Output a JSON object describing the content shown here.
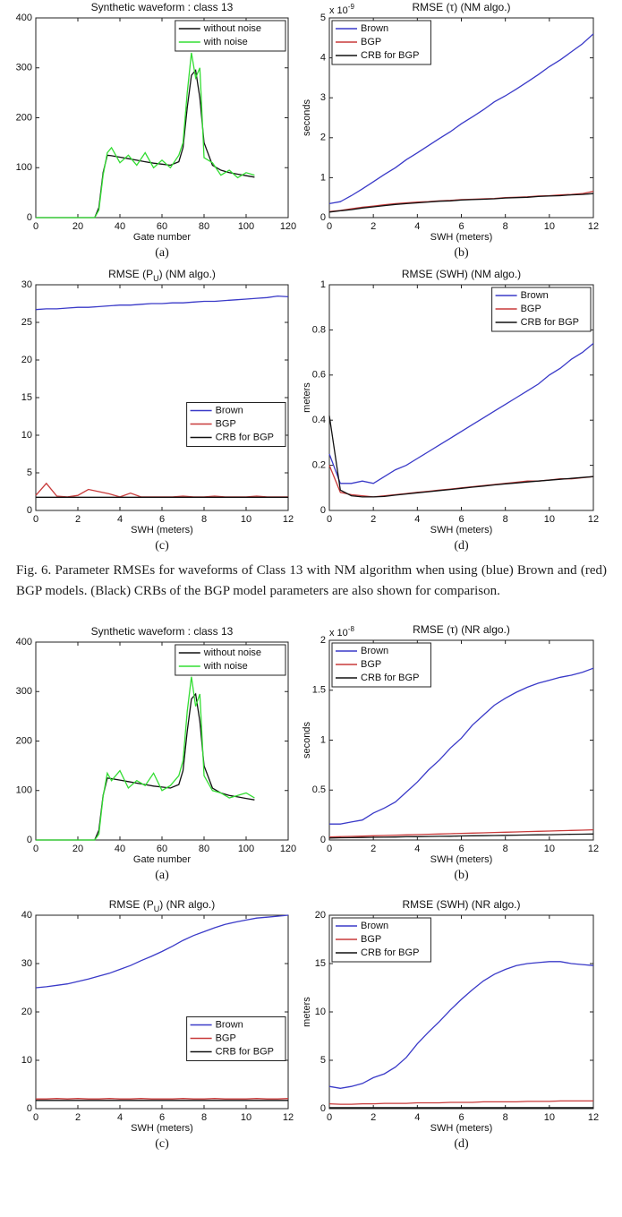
{
  "caption": "Fig. 6.   Parameter RMSEs for waveforms of Class 13 with NM algorithm when using (blue) Brown and (red) BGP models. (Black) CRBs of the BGP model parameters are also shown for comparison.",
  "chart_data": [
    {
      "type": "line",
      "title": "Synthetic waveform : class 13",
      "xlabel": "Gate number",
      "label": "(a)",
      "x": [
        0,
        4,
        8,
        12,
        16,
        20,
        24,
        28,
        30,
        32,
        34,
        36,
        40,
        44,
        48,
        52,
        56,
        60,
        64,
        68,
        70,
        72,
        74,
        76,
        78,
        80,
        84,
        88,
        92,
        96,
        100,
        104
      ],
      "series": [
        {
          "name": "without noise",
          "color": "#111111",
          "values": [
            0,
            0,
            0,
            0,
            0,
            0,
            0,
            0,
            20,
            90,
            125,
            124,
            121,
            118,
            115,
            112,
            109,
            107,
            105,
            112,
            140,
            220,
            285,
            295,
            240,
            150,
            105,
            95,
            90,
            87,
            84,
            81
          ]
        },
        {
          "name": "with noise",
          "color": "#33dd33",
          "values": [
            0,
            0,
            0,
            0,
            0,
            0,
            0,
            0,
            15,
            85,
            130,
            140,
            110,
            125,
            105,
            130,
            100,
            115,
            100,
            125,
            150,
            250,
            330,
            280,
            300,
            120,
            110,
            85,
            95,
            80,
            90,
            85
          ]
        }
      ],
      "xlim": [
        0,
        120
      ],
      "xticks": [
        0,
        20,
        40,
        60,
        80,
        100,
        120
      ],
      "ylim": [
        0,
        400
      ],
      "yticks": [
        0,
        100,
        200,
        300,
        400
      ],
      "legend": "upper right"
    },
    {
      "type": "line",
      "title": "RMSE (τ) (NM algo.)",
      "xlabel": "SWH (meters)",
      "ylabel": "seconds",
      "label": "(b)",
      "ymult": "x 10",
      "ymult_exp": "-9",
      "x": [
        0,
        0.5,
        1,
        1.5,
        2,
        2.5,
        3,
        3.5,
        4,
        4.5,
        5,
        5.5,
        6,
        6.5,
        7,
        7.5,
        8,
        8.5,
        9,
        9.5,
        10,
        10.5,
        11,
        11.5,
        12
      ],
      "series": [
        {
          "name": "Brown",
          "color": "#3a3ac8",
          "values": [
            0.35,
            0.4,
            0.55,
            0.72,
            0.9,
            1.08,
            1.25,
            1.45,
            1.62,
            1.8,
            1.98,
            2.15,
            2.35,
            2.52,
            2.7,
            2.9,
            3.05,
            3.22,
            3.4,
            3.58,
            3.78,
            3.95,
            4.15,
            4.35,
            4.6
          ]
        },
        {
          "name": "BGP",
          "color": "#c83a3a",
          "values": [
            0.15,
            0.18,
            0.22,
            0.26,
            0.29,
            0.32,
            0.35,
            0.37,
            0.39,
            0.4,
            0.42,
            0.43,
            0.45,
            0.46,
            0.47,
            0.48,
            0.5,
            0.51,
            0.52,
            0.54,
            0.55,
            0.57,
            0.58,
            0.6,
            0.66
          ]
        },
        {
          "name": "CRB for BGP",
          "color": "#111111",
          "values": [
            0.14,
            0.17,
            0.2,
            0.24,
            0.27,
            0.3,
            0.33,
            0.35,
            0.37,
            0.39,
            0.41,
            0.42,
            0.44,
            0.45,
            0.46,
            0.47,
            0.49,
            0.5,
            0.51,
            0.53,
            0.54,
            0.55,
            0.57,
            0.58,
            0.6
          ]
        }
      ],
      "xlim": [
        0,
        12
      ],
      "xticks": [
        0,
        2,
        4,
        6,
        8,
        10,
        12
      ],
      "ylim": [
        0,
        5
      ],
      "yticks": [
        0,
        1,
        2,
        3,
        4,
        5
      ],
      "legend": "upper left"
    },
    {
      "type": "line",
      "title": "RMSE (P",
      "title_sub": "U",
      "title_end": ") (NM algo.)",
      "xlabel": "SWH (meters)",
      "label": "(c)",
      "x": [
        0,
        0.5,
        1,
        1.5,
        2,
        2.5,
        3,
        3.5,
        4,
        4.5,
        5,
        5.5,
        6,
        6.5,
        7,
        7.5,
        8,
        8.5,
        9,
        9.5,
        10,
        10.5,
        11,
        11.5,
        12
      ],
      "series": [
        {
          "name": "Brown",
          "color": "#3a3ac8",
          "values": [
            26.7,
            26.8,
            26.8,
            26.9,
            27.0,
            27.0,
            27.1,
            27.2,
            27.3,
            27.3,
            27.4,
            27.5,
            27.5,
            27.6,
            27.6,
            27.7,
            27.8,
            27.8,
            27.9,
            28.0,
            28.1,
            28.2,
            28.3,
            28.5,
            28.4
          ]
        },
        {
          "name": "BGP",
          "color": "#c83a3a",
          "values": [
            2.0,
            3.6,
            1.9,
            1.8,
            2.0,
            2.8,
            2.5,
            2.2,
            1.8,
            2.3,
            1.8,
            1.8,
            1.8,
            1.8,
            1.9,
            1.8,
            1.8,
            1.9,
            1.8,
            1.8,
            1.8,
            1.9,
            1.8,
            1.8,
            1.8
          ]
        },
        {
          "name": "CRB for BGP",
          "color": "#111111",
          "values": [
            1.75,
            1.75,
            1.75,
            1.75,
            1.75,
            1.75,
            1.75,
            1.75,
            1.75,
            1.75,
            1.75,
            1.75,
            1.75,
            1.75,
            1.75,
            1.75,
            1.75,
            1.75,
            1.75,
            1.75,
            1.75,
            1.75,
            1.75,
            1.75,
            1.75
          ]
        }
      ],
      "xlim": [
        0,
        12
      ],
      "xticks": [
        0,
        2,
        4,
        6,
        8,
        10,
        12
      ],
      "ylim": [
        0,
        30
      ],
      "yticks": [
        0,
        5,
        10,
        15,
        20,
        25,
        30
      ],
      "legend": "center right"
    },
    {
      "type": "line",
      "title": "RMSE (SWH) (NM algo.)",
      "xlabel": "SWH (meters)",
      "ylabel": "meters",
      "label": "(d)",
      "x": [
        0,
        0.5,
        1,
        1.5,
        2,
        2.5,
        3,
        3.5,
        4,
        4.5,
        5,
        5.5,
        6,
        6.5,
        7,
        7.5,
        8,
        8.5,
        9,
        9.5,
        10,
        10.5,
        11,
        11.5,
        12
      ],
      "series": [
        {
          "name": "Brown",
          "color": "#3a3ac8",
          "values": [
            0.25,
            0.12,
            0.12,
            0.13,
            0.12,
            0.15,
            0.18,
            0.2,
            0.23,
            0.26,
            0.29,
            0.32,
            0.35,
            0.38,
            0.41,
            0.44,
            0.47,
            0.5,
            0.53,
            0.56,
            0.6,
            0.63,
            0.67,
            0.7,
            0.74
          ]
        },
        {
          "name": "BGP",
          "color": "#c83a3a",
          "values": [
            0.2,
            0.08,
            0.07,
            0.065,
            0.06,
            0.065,
            0.07,
            0.075,
            0.08,
            0.085,
            0.09,
            0.095,
            0.1,
            0.105,
            0.11,
            0.115,
            0.12,
            0.125,
            0.13,
            0.13,
            0.135,
            0.14,
            0.14,
            0.145,
            0.15
          ]
        },
        {
          "name": "CRB for BGP",
          "color": "#111111",
          "values": [
            0.42,
            0.09,
            0.065,
            0.06,
            0.06,
            0.062,
            0.068,
            0.073,
            0.078,
            0.083,
            0.088,
            0.093,
            0.098,
            0.103,
            0.108,
            0.113,
            0.118,
            0.122,
            0.126,
            0.13,
            0.134,
            0.138,
            0.142,
            0.146,
            0.15
          ]
        }
      ],
      "xlim": [
        0,
        12
      ],
      "xticks": [
        0,
        2,
        4,
        6,
        8,
        10,
        12
      ],
      "ylim": [
        0,
        1
      ],
      "yticks": [
        0,
        0.2,
        0.4,
        0.6,
        0.8,
        1
      ],
      "legend": "upper right"
    },
    {
      "type": "line",
      "title": "Synthetic waveform : class 13",
      "xlabel": "Gate number",
      "label": "(a)",
      "x": [
        0,
        4,
        8,
        12,
        16,
        20,
        24,
        28,
        30,
        32,
        34,
        36,
        40,
        44,
        48,
        52,
        56,
        60,
        64,
        68,
        70,
        72,
        74,
        76,
        78,
        80,
        84,
        88,
        92,
        96,
        100,
        104
      ],
      "series": [
        {
          "name": "without noise",
          "color": "#111111",
          "values": [
            0,
            0,
            0,
            0,
            0,
            0,
            0,
            0,
            20,
            90,
            125,
            124,
            121,
            118,
            115,
            112,
            109,
            107,
            105,
            112,
            140,
            220,
            285,
            295,
            240,
            150,
            105,
            95,
            90,
            87,
            84,
            81
          ]
        },
        {
          "name": "with noise",
          "color": "#33dd33",
          "values": [
            0,
            0,
            0,
            0,
            0,
            0,
            0,
            0,
            12,
            88,
            135,
            120,
            140,
            105,
            120,
            110,
            135,
            100,
            110,
            130,
            160,
            260,
            330,
            270,
            295,
            130,
            100,
            95,
            85,
            90,
            95,
            85
          ]
        }
      ],
      "xlim": [
        0,
        120
      ],
      "xticks": [
        0,
        20,
        40,
        60,
        80,
        100,
        120
      ],
      "ylim": [
        0,
        400
      ],
      "yticks": [
        0,
        100,
        200,
        300,
        400
      ],
      "legend": "upper right"
    },
    {
      "type": "line",
      "title": "RMSE (τ) (NR algo.)",
      "xlabel": "SWH (meters)",
      "ylabel": "seconds",
      "label": "(b)",
      "ymult": "x 10",
      "ymult_exp": "-8",
      "x": [
        0,
        0.5,
        1,
        1.5,
        2,
        2.5,
        3,
        3.5,
        4,
        4.5,
        5,
        5.5,
        6,
        6.5,
        7,
        7.5,
        8,
        8.5,
        9,
        9.5,
        10,
        10.5,
        11,
        11.5,
        12
      ],
      "series": [
        {
          "name": "Brown",
          "color": "#3a3ac8",
          "values": [
            0.16,
            0.16,
            0.18,
            0.2,
            0.27,
            0.32,
            0.38,
            0.48,
            0.58,
            0.7,
            0.8,
            0.92,
            1.02,
            1.15,
            1.25,
            1.35,
            1.42,
            1.48,
            1.53,
            1.57,
            1.6,
            1.63,
            1.65,
            1.68,
            1.72
          ]
        },
        {
          "name": "BGP",
          "color": "#c83a3a",
          "values": [
            0.03,
            0.033,
            0.036,
            0.039,
            0.042,
            0.045,
            0.048,
            0.051,
            0.054,
            0.057,
            0.06,
            0.063,
            0.066,
            0.069,
            0.072,
            0.075,
            0.078,
            0.081,
            0.084,
            0.087,
            0.09,
            0.093,
            0.096,
            0.099,
            0.102
          ]
        },
        {
          "name": "CRB for BGP",
          "color": "#111111",
          "values": [
            0.02,
            0.022,
            0.023,
            0.025,
            0.027,
            0.028,
            0.03,
            0.032,
            0.033,
            0.035,
            0.037,
            0.038,
            0.04,
            0.042,
            0.043,
            0.045,
            0.047,
            0.048,
            0.05,
            0.052,
            0.053,
            0.055,
            0.057,
            0.058,
            0.06
          ]
        }
      ],
      "xlim": [
        0,
        12
      ],
      "xticks": [
        0,
        2,
        4,
        6,
        8,
        10,
        12
      ],
      "ylim": [
        0,
        2
      ],
      "yticks": [
        0,
        0.5,
        1,
        1.5,
        2
      ],
      "legend": "upper left"
    },
    {
      "type": "line",
      "title": "RMSE (P",
      "title_sub": "U",
      "title_end": ") (NR algo.)",
      "xlabel": "SWH (meters)",
      "label": "(c)",
      "x": [
        0,
        0.5,
        1,
        1.5,
        2,
        2.5,
        3,
        3.5,
        4,
        4.5,
        5,
        5.5,
        6,
        6.5,
        7,
        7.5,
        8,
        8.5,
        9,
        9.5,
        10,
        10.5,
        11,
        11.5,
        12
      ],
      "series": [
        {
          "name": "Brown",
          "color": "#3a3ac8",
          "values": [
            25,
            25.2,
            25.5,
            25.8,
            26.3,
            26.8,
            27.4,
            28.0,
            28.8,
            29.6,
            30.6,
            31.5,
            32.5,
            33.6,
            34.8,
            35.8,
            36.6,
            37.4,
            38.1,
            38.6,
            39.0,
            39.4,
            39.6,
            39.8,
            40.0
          ]
        },
        {
          "name": "BGP",
          "color": "#c83a3a",
          "values": [
            2.0,
            2.0,
            2.1,
            2.0,
            2.1,
            2.0,
            2.0,
            2.1,
            2.0,
            2.0,
            2.1,
            2.0,
            2.0,
            2.0,
            2.1,
            2.0,
            2.0,
            2.1,
            2.0,
            2.0,
            2.0,
            2.1,
            2.0,
            2.0,
            2.1
          ]
        },
        {
          "name": "CRB for BGP",
          "color": "#111111",
          "values": [
            1.7,
            1.7,
            1.7,
            1.7,
            1.7,
            1.7,
            1.7,
            1.7,
            1.7,
            1.7,
            1.7,
            1.7,
            1.7,
            1.7,
            1.7,
            1.7,
            1.7,
            1.7,
            1.7,
            1.7,
            1.7,
            1.7,
            1.7,
            1.7,
            1.7
          ]
        }
      ],
      "xlim": [
        0,
        12
      ],
      "xticks": [
        0,
        2,
        4,
        6,
        8,
        10,
        12
      ],
      "ylim": [
        0,
        40
      ],
      "yticks": [
        0,
        10,
        20,
        30,
        40
      ],
      "legend": "center right"
    },
    {
      "type": "line",
      "title": "RMSE (SWH) (NR algo.)",
      "xlabel": "SWH (meters)",
      "ylabel": "meters",
      "label": "(d)",
      "x": [
        0,
        0.5,
        1,
        1.5,
        2,
        2.5,
        3,
        3.5,
        4,
        4.5,
        5,
        5.5,
        6,
        6.5,
        7,
        7.5,
        8,
        8.5,
        9,
        9.5,
        10,
        10.5,
        11,
        11.5,
        12
      ],
      "series": [
        {
          "name": "Brown",
          "color": "#3a3ac8",
          "values": [
            2.3,
            2.1,
            2.3,
            2.6,
            3.2,
            3.6,
            4.3,
            5.3,
            6.7,
            7.9,
            9,
            10.2,
            11.3,
            12.3,
            13.2,
            13.9,
            14.4,
            14.8,
            15,
            15.1,
            15.2,
            15.2,
            15,
            14.9,
            14.8
          ]
        },
        {
          "name": "BGP",
          "color": "#c83a3a",
          "values": [
            0.5,
            0.45,
            0.45,
            0.5,
            0.5,
            0.55,
            0.55,
            0.55,
            0.6,
            0.6,
            0.6,
            0.65,
            0.65,
            0.65,
            0.7,
            0.7,
            0.7,
            0.7,
            0.75,
            0.75,
            0.75,
            0.8,
            0.8,
            0.8,
            0.8
          ]
        },
        {
          "name": "CRB for BGP",
          "color": "#111111",
          "values": [
            0.1,
            0.1,
            0.1,
            0.1,
            0.1,
            0.1,
            0.1,
            0.1,
            0.1,
            0.1,
            0.1,
            0.1,
            0.1,
            0.1,
            0.1,
            0.1,
            0.1,
            0.1,
            0.1,
            0.1,
            0.1,
            0.1,
            0.1,
            0.1,
            0.1
          ]
        }
      ],
      "xlim": [
        0,
        12
      ],
      "xticks": [
        0,
        2,
        4,
        6,
        8,
        10,
        12
      ],
      "ylim": [
        0,
        20
      ],
      "yticks": [
        0,
        5,
        10,
        15,
        20
      ],
      "legend": "upper left"
    }
  ]
}
